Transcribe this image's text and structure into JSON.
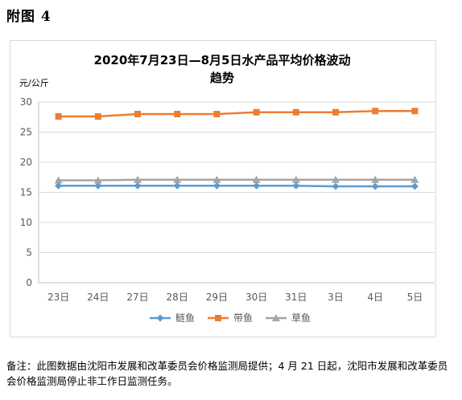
{
  "figure_label": "附图 4",
  "chart_data": {
    "type": "line",
    "title_line1": "2020年7月23日—8月5日水产品平均价格波动",
    "title_line2": "趋势",
    "ylabel": "元/公斤",
    "xlabel": "",
    "ylim": [
      0,
      30
    ],
    "yticks": [
      "0",
      "5",
      "10",
      "15",
      "20",
      "25",
      "30"
    ],
    "categories": [
      "23日",
      "24日",
      "27日",
      "28日",
      "29日",
      "30日",
      "31日",
      "3日",
      "4日",
      "5日"
    ],
    "grid": true,
    "legend_position": "bottom",
    "series": [
      {
        "name": "鲢鱼",
        "color": "#5b9bd5",
        "marker": "diamond",
        "values": [
          16.1,
          16.1,
          16.1,
          16.1,
          16.1,
          16.1,
          16.1,
          16.0,
          16.0,
          16.0
        ]
      },
      {
        "name": "带鱼",
        "color": "#ed7d31",
        "marker": "square",
        "values": [
          27.6,
          27.6,
          28.0,
          28.0,
          28.0,
          28.3,
          28.3,
          28.3,
          28.5,
          28.5
        ]
      },
      {
        "name": "草鱼",
        "color": "#a5a5a5",
        "marker": "triangle",
        "values": [
          17.0,
          17.0,
          17.1,
          17.1,
          17.1,
          17.1,
          17.1,
          17.1,
          17.1,
          17.1
        ]
      }
    ]
  },
  "note": "备注：此图数据由沈阳市发展和改革委员会价格监测局提供；4 月 21 日起，沈阳市发展和改革委员会价格监测局停止非工作日监测任务。"
}
